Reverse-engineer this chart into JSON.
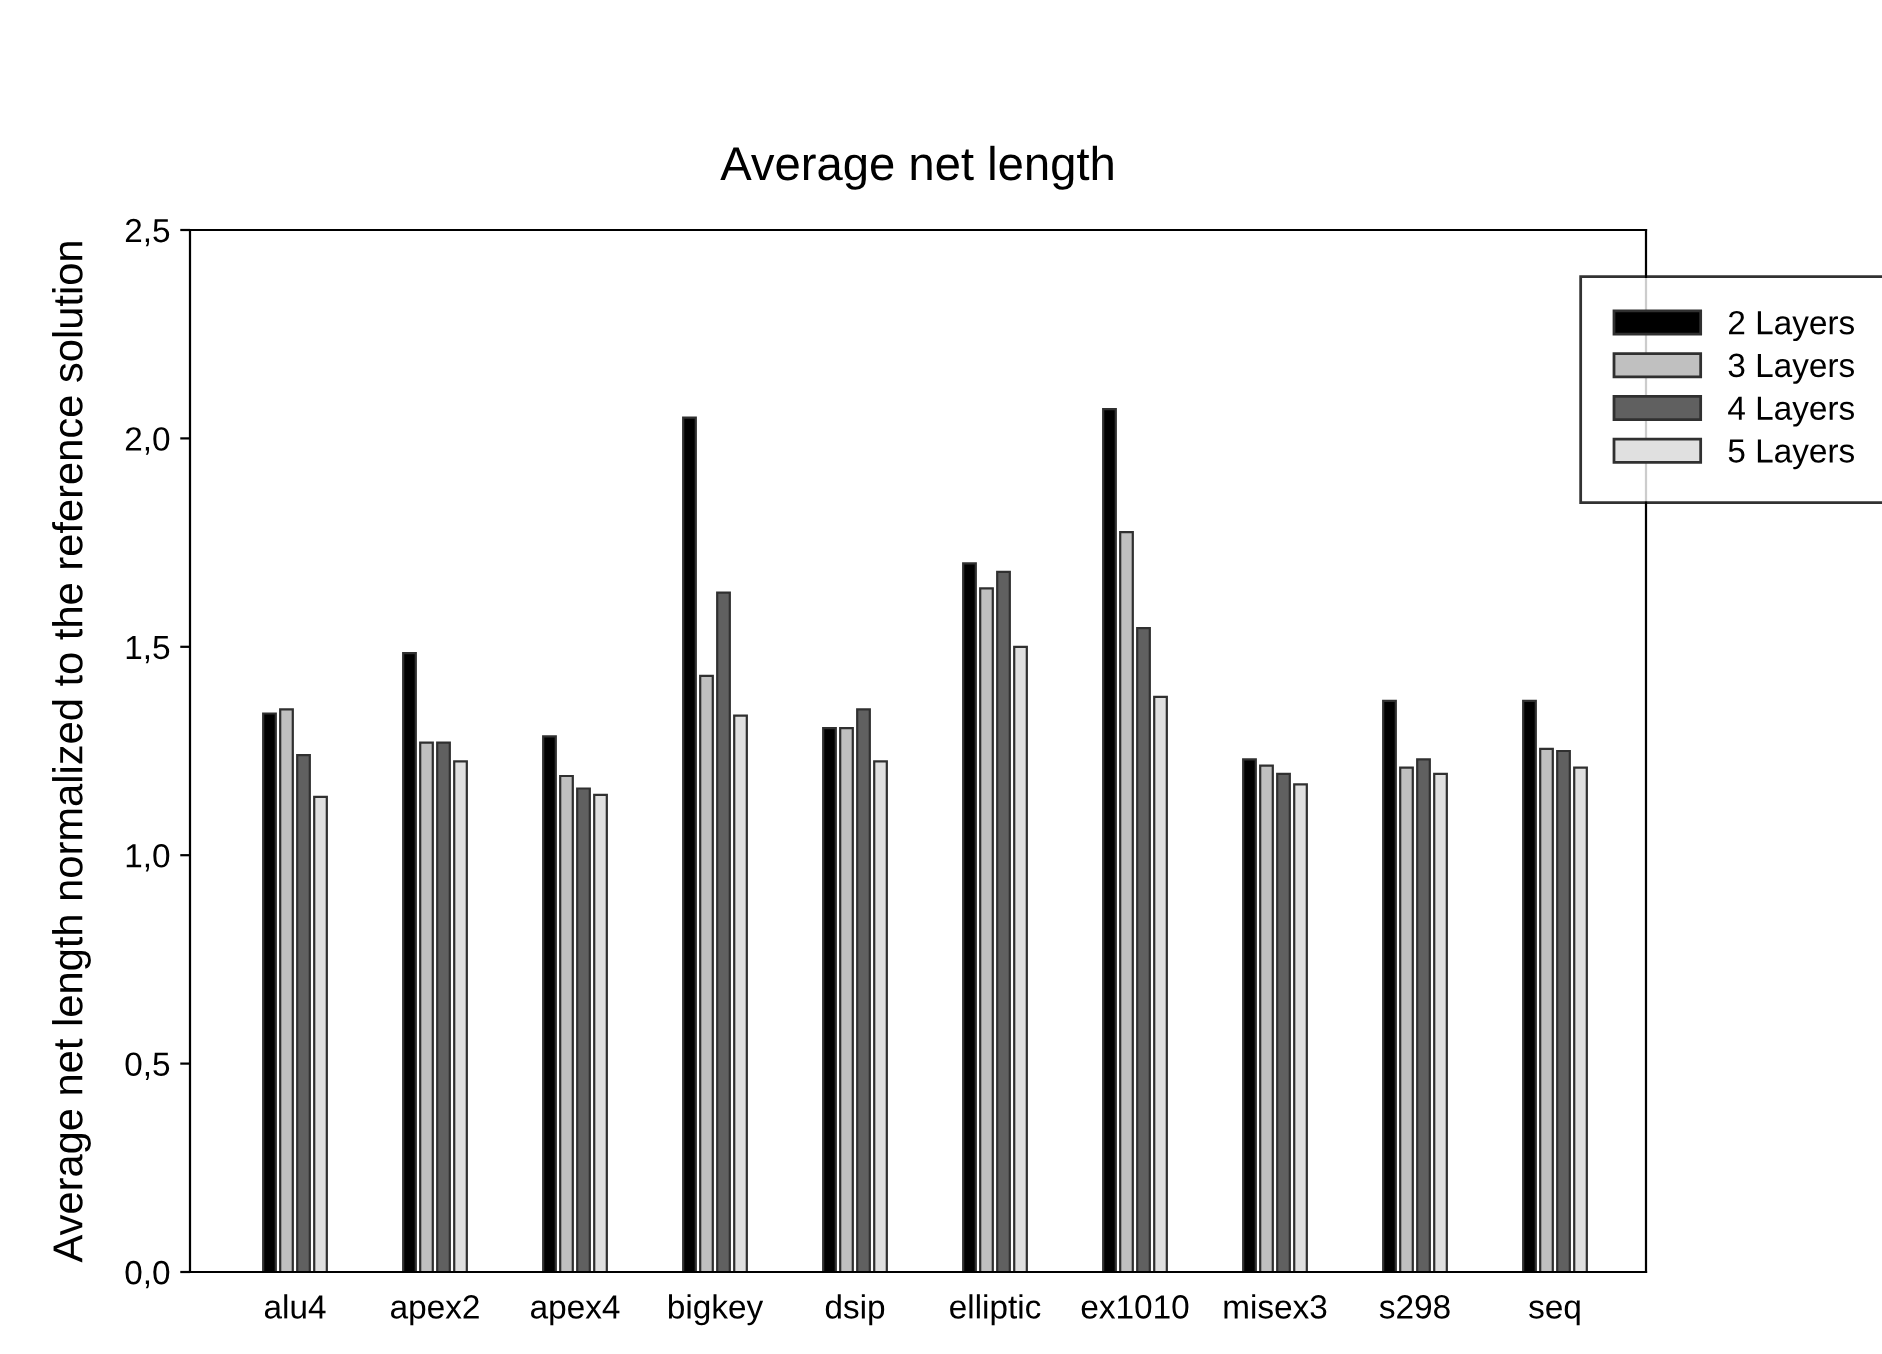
{
  "chart_data": {
    "type": "bar",
    "title": "Average net length",
    "ylabel": "Average net length normalized to the reference solution",
    "categories": [
      "alu4",
      "apex2",
      "apex4",
      "bigkey",
      "dsip",
      "elliptic",
      "ex1010",
      "misex3",
      "s298",
      "seq"
    ],
    "series": [
      {
        "name": "2 Layers",
        "color": "#000000",
        "values": [
          1.34,
          1.485,
          1.285,
          2.05,
          1.305,
          1.7,
          2.07,
          1.23,
          1.37,
          1.37
        ]
      },
      {
        "name": "3 Layers",
        "color": "#c0c0c0",
        "values": [
          1.35,
          1.27,
          1.19,
          1.43,
          1.305,
          1.64,
          1.775,
          1.215,
          1.21,
          1.255
        ]
      },
      {
        "name": "4 Layers",
        "color": "#606060",
        "values": [
          1.24,
          1.27,
          1.16,
          1.63,
          1.35,
          1.68,
          1.545,
          1.195,
          1.23,
          1.25
        ]
      },
      {
        "name": "5 Layers",
        "color": "#e0e0e0",
        "values": [
          1.14,
          1.225,
          1.145,
          1.335,
          1.225,
          1.5,
          1.38,
          1.17,
          1.195,
          1.21
        ]
      }
    ],
    "ylim": [
      0,
      2.5
    ],
    "yticks": [
      {
        "value": 0,
        "label": "0,0"
      },
      {
        "value": 0.5,
        "label": "0,5"
      },
      {
        "value": 1.0,
        "label": "1,0"
      },
      {
        "value": 1.5,
        "label": "1,5"
      },
      {
        "value": 2.0,
        "label": "2,0"
      },
      {
        "value": 2.5,
        "label": "2,5"
      }
    ],
    "grid": false,
    "legend": "top right"
  }
}
